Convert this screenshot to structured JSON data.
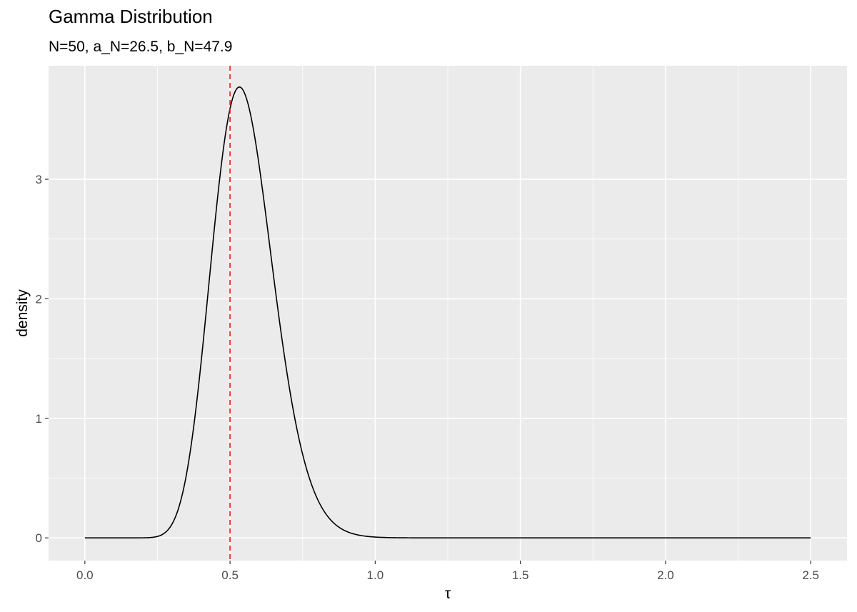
{
  "chart_data": {
    "type": "line",
    "title": "Gamma Distribution",
    "subtitle": "N=50, a_N=26.5, b_N=47.9",
    "xlabel": "τ",
    "ylabel": "density",
    "xlim": [
      -0.125,
      2.625
    ],
    "ylim": [
      -0.19,
      3.95
    ],
    "x_ticks": [
      0.0,
      0.5,
      1.0,
      1.5,
      2.0,
      2.5
    ],
    "x_tick_labels": [
      "0.0",
      "0.5",
      "1.0",
      "1.5",
      "2.0",
      "2.5"
    ],
    "y_ticks": [
      0,
      1,
      2,
      3
    ],
    "y_tick_labels": [
      "0",
      "1",
      "2",
      "3"
    ],
    "grid": true,
    "panel_background": "#ebebeb",
    "grid_color": "#ffffff",
    "curve": {
      "color": "#000000",
      "distribution": "gamma",
      "shape": 26.5,
      "rate": 47.9,
      "x_range": [
        0,
        2.5
      ]
    },
    "vline": {
      "x": 0.5,
      "color": "#e41a1c",
      "style": "dashed"
    }
  }
}
